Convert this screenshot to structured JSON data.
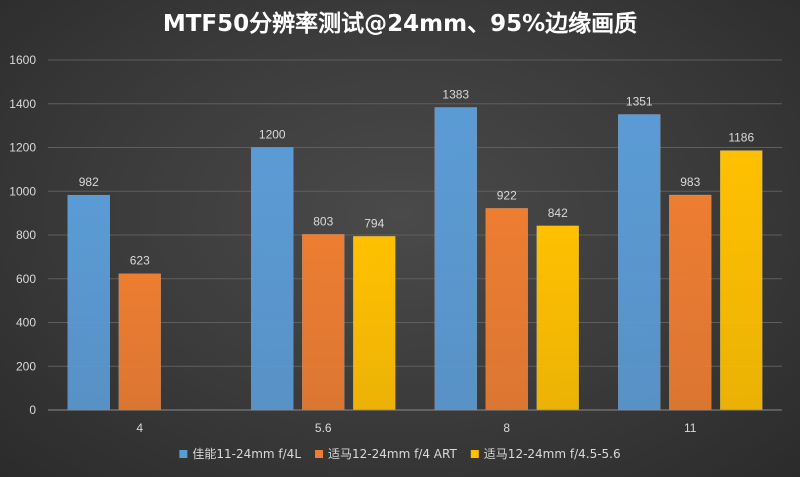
{
  "chart_data": {
    "type": "bar",
    "title": "MTF50分辨率测试@24mm、95%边缘画质",
    "categories": [
      "4",
      "5.6",
      "8",
      "11"
    ],
    "series": [
      {
        "name": "佳能11-24mm f/4L",
        "color": "#5b9bd5",
        "values": [
          982,
          1200,
          1383,
          1351
        ]
      },
      {
        "name": "适马12-24mm f/4 ART",
        "color": "#ed7d31",
        "values": [
          623,
          803,
          922,
          983
        ]
      },
      {
        "name": "适马12-24mm f/4.5-5.6",
        "color": "#ffc000",
        "values": [
          null,
          794,
          842,
          1186
        ]
      }
    ],
    "ylim": [
      0,
      1600
    ],
    "yticks": [
      0,
      200,
      400,
      600,
      800,
      1000,
      1200,
      1400,
      1600
    ],
    "grid": true,
    "legend_position": "bottom",
    "data_labels": true
  }
}
